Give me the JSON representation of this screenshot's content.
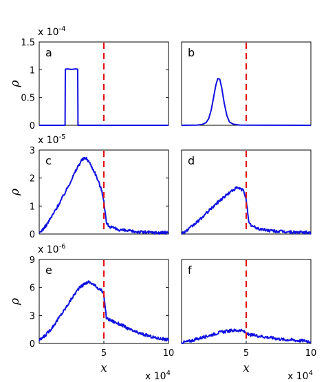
{
  "chart_data": [
    {
      "type": "line",
      "panel": "a",
      "multiplier": "x 10",
      "multiplier_exp": "-4",
      "ylabel": "ρ",
      "xlabel": "",
      "xlim": [
        0,
        100000
      ],
      "ylim": [
        0,
        0.00015
      ],
      "yticks": [
        "0",
        "0.5",
        "1",
        "1.5"
      ],
      "ytick_values": [
        0,
        5e-05,
        0.0001,
        0.00015
      ],
      "xticks": [],
      "xtick_values": [],
      "marker_x": 50000,
      "series": [
        {
          "x": [
            0,
            20000,
            20200,
            22000,
            25000,
            28000,
            29800,
            30000,
            100000
          ],
          "values": [
            0,
            0,
            0.000101,
            0.0001015,
            0.0001005,
            0.0001015,
            0.000101,
            0,
            0
          ]
        }
      ]
    },
    {
      "type": "line",
      "panel": "b",
      "multiplier": "",
      "multiplier_exp": "",
      "ylabel": "",
      "xlabel": "",
      "xlim": [
        0,
        100000
      ],
      "ylim": [
        0,
        0.00015
      ],
      "yticks": [],
      "ytick_values": [],
      "xticks": [],
      "xtick_values": [],
      "marker_x": 50000,
      "series": [
        {
          "x": [
            0,
            12000,
            16000,
            19000,
            21000,
            23000,
            25000,
            26500,
            28000,
            29500,
            31000,
            33000,
            35000,
            37000,
            40000,
            45000,
            100000
          ],
          "values": [
            0,
            3e-07,
            1.5e-06,
            5e-06,
            1.2e-05,
            2.8e-05,
            5.3e-05,
            7.2e-05,
            8.4e-05,
            8.3e-05,
            6.8e-05,
            4e-05,
            1.8e-05,
            6e-06,
            2e-06,
            3e-07,
            0
          ]
        }
      ]
    },
    {
      "type": "line",
      "panel": "c",
      "multiplier": "x 10",
      "multiplier_exp": "-5",
      "ylabel": "ρ",
      "xlabel": "",
      "xlim": [
        0,
        100000
      ],
      "ylim": [
        0,
        3e-05
      ],
      "yticks": [
        "0",
        "1",
        "2",
        "3"
      ],
      "ytick_values": [
        0,
        1e-05,
        2e-05,
        3e-05
      ],
      "xticks": [],
      "xtick_values": [],
      "marker_x": 50000,
      "series": [
        {
          "x": [
            0,
            5000,
            10000,
            15000,
            20000,
            25000,
            30000,
            33000,
            36000,
            38000,
            40000,
            43000,
            46000,
            48000,
            50000,
            52000,
            55000,
            60000,
            70000,
            80000,
            90000,
            100000
          ],
          "values": [
            3e-07,
            2.8e-06,
            6.5e-06,
            1.05e-05,
            1.48e-05,
            1.95e-05,
            2.42e-05,
            2.65e-05,
            2.72e-05,
            2.62e-05,
            2.46e-05,
            2.2e-05,
            1.85e-05,
            1.6e-05,
            1.2e-05,
            3.8e-06,
            2.5e-06,
            1.7e-06,
            1e-06,
            7e-07,
            5e-07,
            5e-07
          ]
        }
      ]
    },
    {
      "type": "line",
      "panel": "d",
      "multiplier": "",
      "multiplier_exp": "",
      "ylabel": "",
      "xlabel": "",
      "xlim": [
        0,
        100000
      ],
      "ylim": [
        0,
        3e-05
      ],
      "yticks": [],
      "ytick_values": [],
      "xticks": [],
      "xtick_values": [],
      "marker_x": 50000,
      "series": [
        {
          "x": [
            0,
            5000,
            10000,
            15000,
            20000,
            25000,
            30000,
            35000,
            40000,
            43000,
            45000,
            48000,
            50000,
            52000,
            55000,
            60000,
            70000,
            80000,
            90000,
            100000
          ],
          "values": [
            2e-07,
            1.5e-06,
            3.5e-06,
            5.5e-06,
            7.8e-06,
            1e-05,
            1.22e-05,
            1.4e-05,
            1.58e-05,
            1.65e-05,
            1.62e-05,
            1.55e-05,
            1.25e-05,
            3.8e-06,
            2.7e-06,
            1.8e-06,
            1.1e-06,
            8e-07,
            6e-07,
            5e-07
          ]
        }
      ]
    },
    {
      "type": "line",
      "panel": "e",
      "multiplier": "x 10",
      "multiplier_exp": "-6",
      "ylabel": "ρ",
      "xlabel": "x",
      "xlim": [
        0,
        100000
      ],
      "ylim": [
        0,
        9e-06
      ],
      "yticks": [
        "0",
        "3",
        "6",
        "9"
      ],
      "ytick_values": [
        0,
        3e-06,
        6e-06,
        9e-06
      ],
      "xticks": [
        "5",
        "10"
      ],
      "xtick_values": [
        50000,
        100000
      ],
      "xmultiplier": "x 10",
      "xmultiplier_exp": "4",
      "marker_x": 50000,
      "series": [
        {
          "x": [
            0,
            5000,
            10000,
            15000,
            20000,
            25000,
            30000,
            35000,
            38000,
            40000,
            43000,
            46000,
            48000,
            50000,
            52000,
            55000,
            60000,
            65000,
            70000,
            75000,
            80000,
            85000,
            90000,
            95000,
            100000
          ],
          "values": [
            3e-07,
            9e-07,
            1.7e-06,
            2.7e-06,
            3.7e-06,
            4.8e-06,
            5.8e-06,
            6.4e-06,
            6.6e-06,
            6.5e-06,
            6.2e-06,
            5.9e-06,
            5.7e-06,
            5.2e-06,
            2.7e-06,
            2.5e-06,
            2.2e-06,
            1.9e-06,
            1.5e-06,
            1.2e-06,
            1e-06,
            8e-07,
            6e-07,
            5e-07,
            4e-07
          ]
        }
      ]
    },
    {
      "type": "line",
      "panel": "f",
      "multiplier": "",
      "multiplier_exp": "",
      "ylabel": "",
      "xlabel": "x",
      "xlim": [
        0,
        100000
      ],
      "ylim": [
        0,
        9e-06
      ],
      "yticks": [],
      "ytick_values": [],
      "xticks": [
        "5",
        "10"
      ],
      "xtick_values": [
        50000,
        100000
      ],
      "xmultiplier": "x 10",
      "xmultiplier_exp": "4",
      "marker_x": 50000,
      "series": [
        {
          "x": [
            0,
            5000,
            10000,
            15000,
            20000,
            25000,
            30000,
            35000,
            40000,
            45000,
            48000,
            50000,
            52000,
            55000,
            60000,
            65000,
            70000,
            75000,
            80000,
            85000,
            90000,
            95000,
            100000
          ],
          "values": [
            1e-07,
            2e-07,
            4e-07,
            6e-07,
            8e-07,
            1e-06,
            1.2e-06,
            1.3e-06,
            1.4e-06,
            1.4e-06,
            1.3e-06,
            1.1e-06,
            9e-07,
            9e-07,
            8e-07,
            7e-07,
            6e-07,
            5e-07,
            4e-07,
            4e-07,
            3e-07,
            3e-07,
            2e-07
          ]
        }
      ]
    }
  ],
  "colors": {
    "series": "#1010e0",
    "marker": "#e01414",
    "axis": "#000000"
  }
}
